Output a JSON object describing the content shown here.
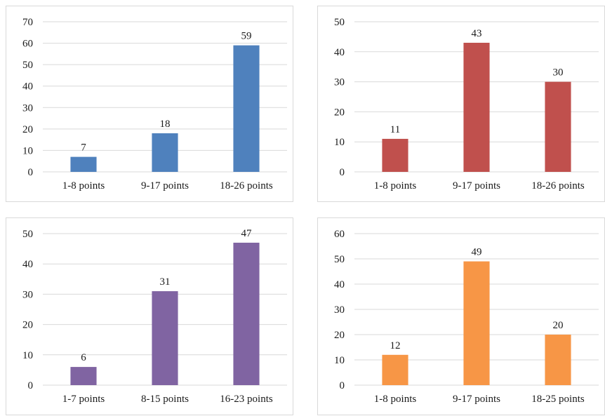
{
  "chart_data": [
    {
      "type": "bar",
      "categories": [
        "1-8 points",
        "9-17 points",
        "18-26 points"
      ],
      "values": [
        7,
        18,
        59
      ],
      "ylim": [
        0,
        70
      ],
      "yticks": [
        0,
        10,
        20,
        30,
        40,
        50,
        60,
        70
      ],
      "color": "#4f81bd",
      "grid": true
    },
    {
      "type": "bar",
      "categories": [
        "1-8 points",
        "9-17 points",
        "18-26 points"
      ],
      "values": [
        11,
        43,
        30
      ],
      "ylim": [
        0,
        50
      ],
      "yticks": [
        0,
        10,
        20,
        30,
        40,
        50
      ],
      "color": "#c0504d",
      "grid": true
    },
    {
      "type": "bar",
      "categories": [
        "1-7 points",
        "8-15 points",
        "16-23 points"
      ],
      "values": [
        6,
        31,
        47
      ],
      "ylim": [
        0,
        50
      ],
      "yticks": [
        0,
        10,
        20,
        30,
        40,
        50
      ],
      "color": "#8064a2",
      "grid": true
    },
    {
      "type": "bar",
      "categories": [
        "1-8 points",
        "9-17 points",
        "18-25 points"
      ],
      "values": [
        12,
        49,
        20
      ],
      "ylim": [
        0,
        60
      ],
      "yticks": [
        0,
        10,
        20,
        30,
        40,
        50,
        60
      ],
      "color": "#f79646",
      "grid": true
    }
  ]
}
